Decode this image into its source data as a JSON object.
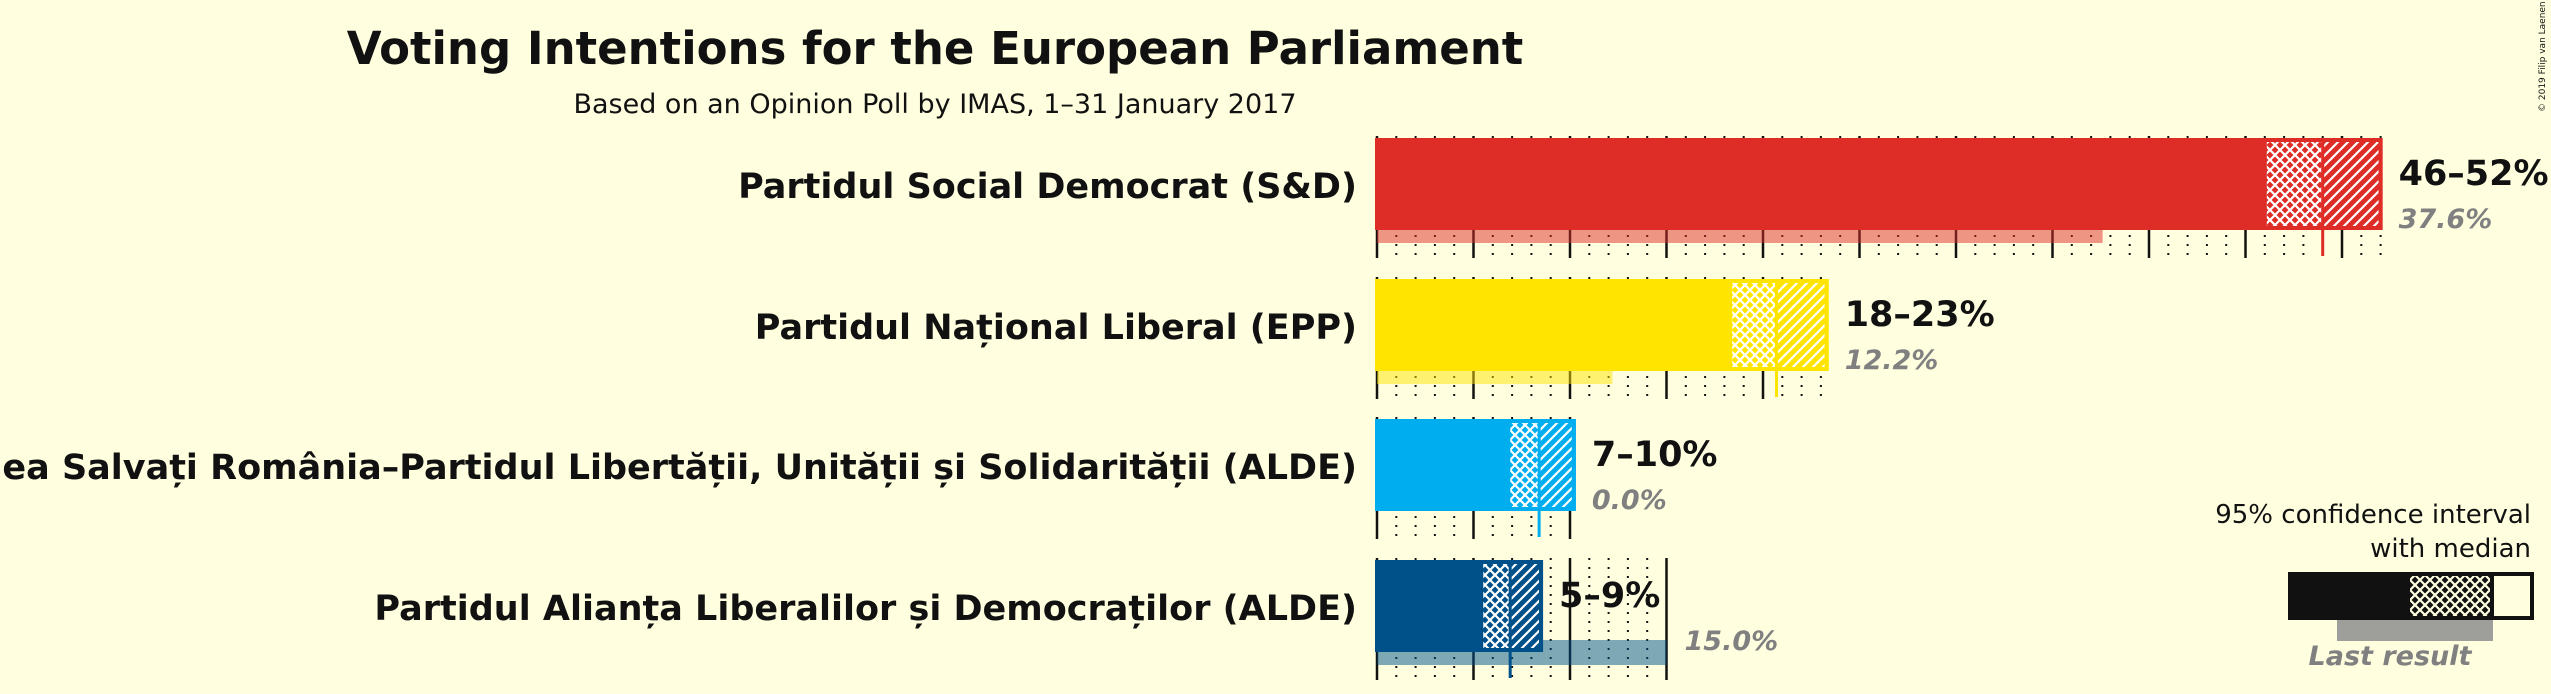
{
  "title": "Voting Intentions for the European Parliament",
  "subtitle": "Based on an Opinion Poll by IMAS, 1–31 January 2017",
  "copyright": "© 2019 Filip van Laenen",
  "legend": {
    "ci_line1": "95% confidence interval",
    "ci_line2": "with median",
    "last_result": "Last result"
  },
  "chart_data": {
    "type": "bar",
    "orientation": "horizontal",
    "title": "Voting Intentions for the European Parliament",
    "subtitle": "Based on an Opinion Poll by IMAS, 1–31 January 2017",
    "unit": "%",
    "xlim": [
      0,
      52.5
    ],
    "categories": [
      "Partidul Social Democrat (S&D)",
      "Partidul Național Liberal (EPP)",
      "Uniunea Salvați România–Partidul Libertății, Unității și Solidarității (ALDE)",
      "Partidul Alianța Liberalilor și Democraților (ALDE)"
    ],
    "series": [
      {
        "name": "Partidul Social Democrat (S&D)",
        "color": "#DE2D26",
        "low80": 46,
        "ci_low": 46,
        "median": 49,
        "high80": 49,
        "ci_high": 52,
        "range_label": "46–52%",
        "last": 37.6,
        "last_label": "37.6%"
      },
      {
        "name": "Partidul Național Liberal (EPP)",
        "color": "#FFE400",
        "low80": 18.3,
        "ci_low": 18.3,
        "median": 20.7,
        "high80": 20.7,
        "ci_high": 23.3,
        "range_label": "18–23%",
        "last": 12.2,
        "last_label": "12.2%"
      },
      {
        "name": "Uniunea Salvați România–Partidul Libertății, Unității și Solidarității (ALDE)",
        "color": "#00AEEF",
        "low80": 6.8,
        "ci_low": 6.8,
        "median": 8.4,
        "high80": 8.4,
        "ci_high": 10.2,
        "range_label": "7–10%",
        "last": 0.0,
        "last_label": "0.0%"
      },
      {
        "name": "Partidul Alianța Liberalilor și Democraților (ALDE)",
        "color": "#005189",
        "low80": 5.4,
        "ci_low": 5.4,
        "median": 6.9,
        "high80": 6.9,
        "ci_high": 8.5,
        "range_label": "5–9%",
        "last": 15.0,
        "last_label": "15.0%"
      }
    ],
    "legend_position": "bottom-right",
    "grid": true
  }
}
